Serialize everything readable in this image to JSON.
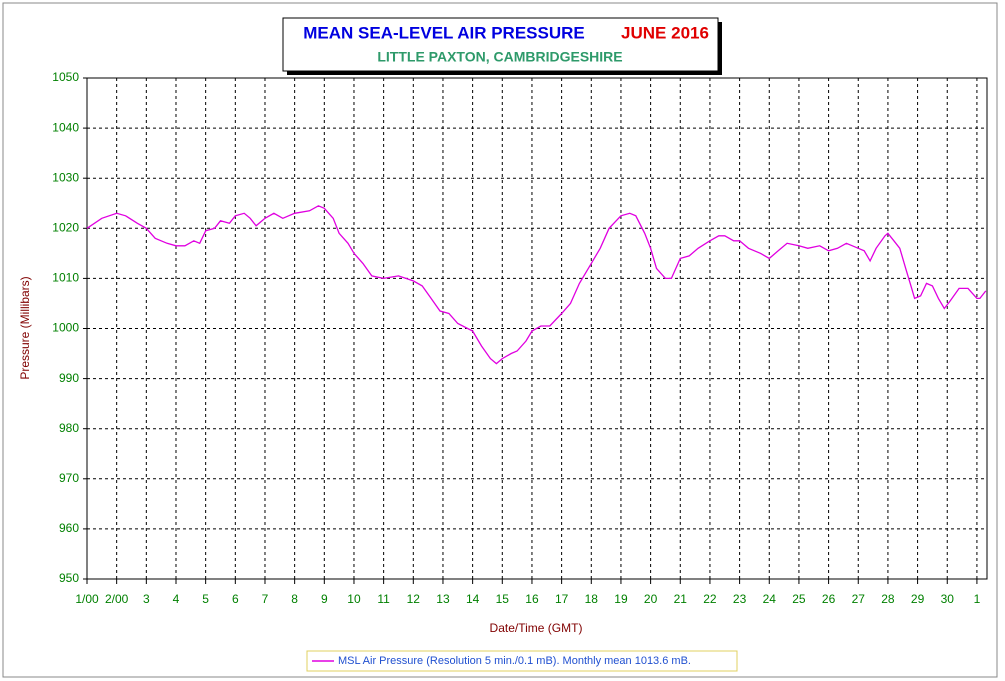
{
  "chart_data": {
    "type": "line",
    "title": "MEAN SEA-LEVEL AIR PRESSURE",
    "title_period": "JUNE 2016",
    "subtitle": "LITTLE PAXTON, CAMBRIDGESHIRE",
    "x_label": "Date/Time (GMT)",
    "y_label": "Pressure (Millibars)",
    "grid": true,
    "legend": "bottom",
    "xlim": [
      1,
      31.34
    ],
    "ylim": [
      950,
      1050
    ],
    "yticks": [
      950,
      960,
      970,
      980,
      990,
      1000,
      1010,
      1020,
      1030,
      1040,
      1050
    ],
    "xticks": [
      {
        "value": 1,
        "label": "1/00"
      },
      {
        "value": 2,
        "label": "2/00"
      },
      3,
      4,
      5,
      6,
      7,
      8,
      9,
      10,
      11,
      12,
      13,
      14,
      15,
      16,
      17,
      18,
      19,
      20,
      21,
      22,
      23,
      24,
      25,
      26,
      27,
      28,
      29,
      30,
      {
        "value": 31,
        "label": "1"
      }
    ],
    "x": [
      1.0,
      1.5,
      2.0,
      2.3,
      2.7,
      3.0,
      3.3,
      3.7,
      4.0,
      4.3,
      4.6,
      4.8,
      5.0,
      5.3,
      5.5,
      5.8,
      6.0,
      6.3,
      6.5,
      6.7,
      7.0,
      7.3,
      7.6,
      8.0,
      8.5,
      8.8,
      9.0,
      9.3,
      9.5,
      9.8,
      10.0,
      10.3,
      10.6,
      11.0,
      11.5,
      12.0,
      12.3,
      12.6,
      12.9,
      13.2,
      13.5,
      14.0,
      14.3,
      14.6,
      14.8,
      15.0,
      15.3,
      15.5,
      15.8,
      16.0,
      16.3,
      16.6,
      17.0,
      17.3,
      17.6,
      18.0,
      18.3,
      18.6,
      19.0,
      19.3,
      19.5,
      19.8,
      20.0,
      20.2,
      20.5,
      20.7,
      21.0,
      21.3,
      21.6,
      22.0,
      22.3,
      22.5,
      22.8,
      23.0,
      23.3,
      23.7,
      24.0,
      24.3,
      24.6,
      25.0,
      25.3,
      25.7,
      26.0,
      26.3,
      26.6,
      27.0,
      27.2,
      27.4,
      27.6,
      27.9,
      28.0,
      28.2,
      28.4,
      28.6,
      28.8,
      28.9,
      29.1,
      29.3,
      29.5,
      29.7,
      29.9,
      30.1,
      30.4,
      30.7,
      31.0,
      31.1,
      31.3
    ],
    "series": [
      {
        "name": "MSL Air Pressure (Resolution 5 min./0.1 mB). Monthly mean 1013.6 mB.",
        "color": "#e000e0",
        "values": [
          1020,
          1022,
          1023,
          1022.5,
          1021,
          1020,
          1018,
          1017,
          1016.5,
          1016.5,
          1017.5,
          1017,
          1019.5,
          1020,
          1021.5,
          1021,
          1022.5,
          1023,
          1022,
          1020.5,
          1022,
          1023,
          1022,
          1023,
          1023.5,
          1024.5,
          1024,
          1022,
          1019,
          1017,
          1015,
          1013,
          1010.5,
          1010,
          1010.5,
          1009.5,
          1008.5,
          1006,
          1003.5,
          1003,
          1001,
          999.5,
          996.5,
          994,
          993,
          994,
          995,
          995.5,
          997.5,
          999.5,
          1000.5,
          1000.5,
          1003,
          1005,
          1009,
          1013,
          1016,
          1020,
          1022.5,
          1023,
          1022.5,
          1019,
          1016,
          1012,
          1010,
          1010,
          1014,
          1014.5,
          1016,
          1017.5,
          1018.5,
          1018.5,
          1017.5,
          1017.5,
          1016,
          1015,
          1014,
          1015.5,
          1017,
          1016.5,
          1016,
          1016.5,
          1015.5,
          1016,
          1017,
          1016,
          1015.5,
          1013.5,
          1016,
          1018.5,
          1019,
          1017.5,
          1016,
          1012,
          1008,
          1006,
          1006.5,
          1009,
          1008.5,
          1006,
          1004,
          1005.5,
          1008,
          1008,
          1006,
          1006,
          1007.5
        ]
      }
    ]
  }
}
